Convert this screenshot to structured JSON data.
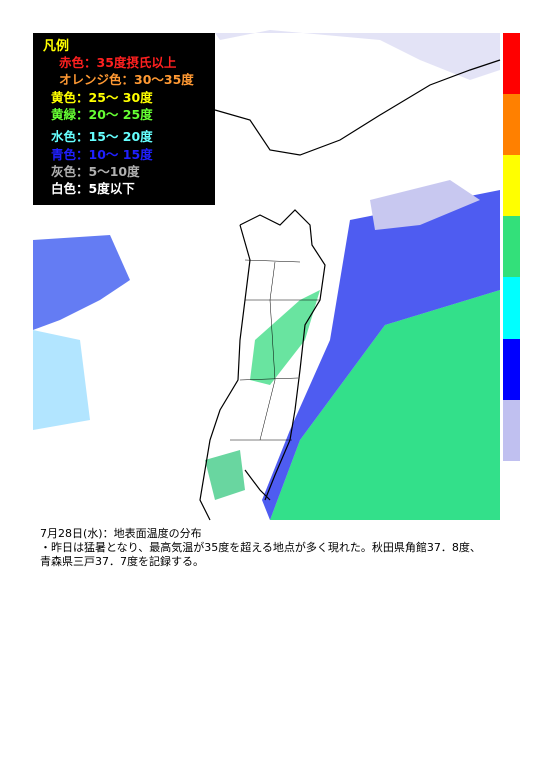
{
  "legend": {
    "title": "凡例",
    "items": [
      {
        "label": "赤色：35度摂氏以上",
        "color": "#ff2020"
      },
      {
        "label": "オレンジ色：30～35度",
        "color": "#ff9933"
      },
      {
        "label": "黄色：25～ 30度",
        "color": "#ffff00"
      },
      {
        "label": "黄緑：20～ 25度",
        "color": "#66ff33"
      },
      {
        "label": "水色：15～ 20度",
        "color": "#66ffff"
      },
      {
        "label": "青色：10～ 15度",
        "color": "#2020ff"
      },
      {
        "label": "灰色：5～10度",
        "color": "#b0b0b0"
      },
      {
        "label": "白色：5度以下",
        "color": "#ffffff"
      }
    ]
  },
  "caption": {
    "lines": [
      "7月28日(水)：地表面温度の分布",
      "・昨日は猛暑となり、最高気温が35度を超える地点が多く現れた。秋田県角館37．8度、",
      "青森県三戸37．7度を記録する。"
    ]
  }
}
